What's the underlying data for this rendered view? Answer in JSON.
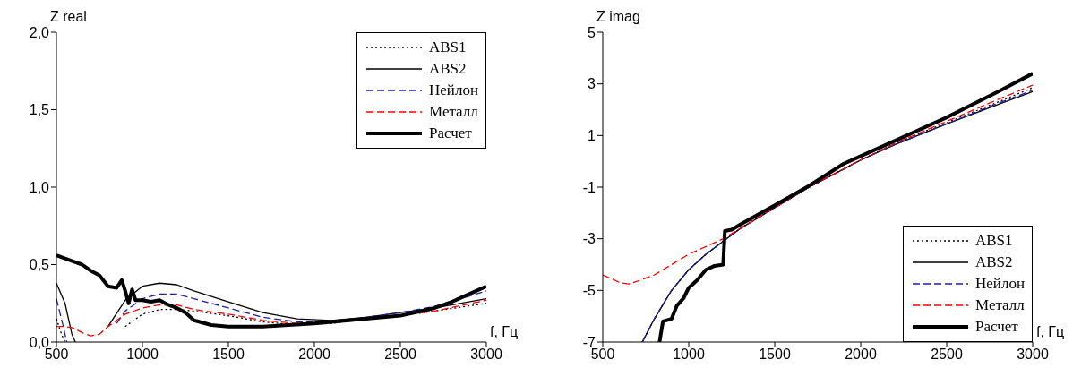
{
  "chart_data": [
    {
      "type": "line",
      "xlabel": "f, Гц",
      "ylabel": "Z real",
      "xlim": [
        500,
        3000
      ],
      "xticks": [
        500,
        1000,
        1500,
        2000,
        2500,
        3000
      ],
      "ylim": [
        0,
        2
      ],
      "yticks": [
        {
          "value": 0,
          "label": "0,0"
        },
        {
          "value": 0.5,
          "label": "0,5"
        },
        {
          "value": 1,
          "label": "1,0"
        },
        {
          "value": 1.5,
          "label": "1,5"
        },
        {
          "value": 2,
          "label": "2,0"
        }
      ],
      "grid": false,
      "legend": "top right",
      "series": [
        {
          "name": "ABS1",
          "color": "#000000",
          "line_style": "dotted",
          "x": [
            500,
            530,
            550,
            850,
            900,
            1000,
            1100,
            1200,
            1300,
            1500,
            1700,
            1900,
            2100,
            2300,
            2500,
            2700,
            3000
          ],
          "values": [
            0.15,
            0.05,
            0,
            null,
            0.1,
            0.18,
            0.21,
            0.21,
            0.2,
            0.17,
            0.13,
            0.11,
            0.12,
            0.15,
            0.17,
            0.2,
            0.25
          ]
        },
        {
          "name": "ABS2",
          "color": "#000000",
          "line_style": "solid",
          "x": [
            500,
            550,
            590,
            610,
            760,
            800,
            900,
            1000,
            1100,
            1200,
            1300,
            1500,
            1700,
            1900,
            2100,
            2300,
            2500,
            2700,
            3000
          ],
          "values": [
            0.38,
            0.25,
            0.05,
            0,
            null,
            0.1,
            0.27,
            0.36,
            0.38,
            0.37,
            0.33,
            0.26,
            0.19,
            0.15,
            0.14,
            0.16,
            0.19,
            0.22,
            0.28
          ]
        },
        {
          "name": "Нейлон",
          "color": "#1f1fa0",
          "line_style": "dashed",
          "x": [
            500,
            540,
            560,
            800,
            850,
            900,
            1000,
            1100,
            1200,
            1300,
            1500,
            1700,
            1900,
            2100,
            2300,
            2500,
            2700,
            3000
          ],
          "values": [
            0.28,
            0.1,
            0,
            null,
            0.12,
            0.2,
            0.28,
            0.31,
            0.31,
            0.28,
            0.22,
            0.16,
            0.13,
            0.13,
            0.16,
            0.19,
            0.23,
            0.33
          ]
        },
        {
          "name": "Металл",
          "color": "#ff0000",
          "line_style": "dashed",
          "x": [
            500,
            550,
            600,
            650,
            700,
            750,
            800,
            900,
            1000,
            1100,
            1200,
            1300,
            1500,
            1700,
            1900,
            2100,
            2300,
            2500,
            2700,
            3000
          ],
          "values": [
            0.1,
            0.1,
            0.09,
            0.06,
            0.04,
            0.05,
            0.1,
            0.18,
            0.22,
            0.24,
            0.24,
            0.21,
            0.18,
            0.14,
            0.12,
            0.13,
            0.15,
            0.17,
            0.2,
            0.27
          ]
        },
        {
          "name": "Расчет",
          "color": "#000000",
          "line_style": "solid",
          "x": [
            500,
            600,
            650,
            700,
            750,
            800,
            850,
            880,
            900,
            920,
            940,
            960,
            1000,
            1050,
            1100,
            1150,
            1200,
            1250,
            1300,
            1400,
            1500,
            1700,
            2000,
            2300,
            2500,
            2700,
            2800,
            3000
          ],
          "values": [
            0.56,
            0.52,
            0.5,
            0.46,
            0.43,
            0.36,
            0.35,
            0.4,
            0.33,
            0.25,
            0.34,
            0.27,
            0.27,
            0.26,
            0.27,
            0.24,
            0.22,
            0.19,
            0.14,
            0.11,
            0.1,
            0.1,
            0.12,
            0.15,
            0.17,
            0.22,
            0.26,
            0.36
          ]
        }
      ]
    },
    {
      "type": "line",
      "xlabel": "f, Гц",
      "ylabel": "Z imag",
      "xlim": [
        500,
        3000
      ],
      "xticks": [
        500,
        1000,
        1500,
        2000,
        2500,
        3000
      ],
      "ylim": [
        -7,
        5
      ],
      "yticks": [
        -7,
        -5,
        -3,
        -1,
        1,
        3,
        5
      ],
      "grid": false,
      "legend": "bottom right",
      "series": [
        {
          "name": "ABS1",
          "color": "#000000",
          "line_style": "dotted",
          "x": [
            730,
            800,
            900,
            1000,
            1100,
            1200,
            1300,
            1500,
            1700,
            1900,
            2000,
            2200,
            2500,
            2800,
            3000
          ],
          "values": [
            -7,
            -6.1,
            -5,
            -4.2,
            -3.6,
            -3.1,
            -2.6,
            -1.8,
            -1,
            -0.3,
            0.05,
            0.7,
            1.5,
            2.3,
            2.85
          ]
        },
        {
          "name": "ABS2",
          "color": "#000000",
          "line_style": "solid",
          "x": [
            730,
            800,
            900,
            1000,
            1100,
            1200,
            1300,
            1500,
            1700,
            1900,
            2000,
            2200,
            2500,
            2800,
            3000
          ],
          "values": [
            -7,
            -6.1,
            -5,
            -4.2,
            -3.6,
            -3.1,
            -2.6,
            -1.8,
            -1,
            -0.3,
            0.05,
            0.65,
            1.45,
            2.2,
            2.7
          ]
        },
        {
          "name": "Нейлон",
          "color": "#1f1fa0",
          "line_style": "dashed",
          "x": [
            730,
            800,
            900,
            1000,
            1100,
            1200,
            1300,
            1500,
            1700,
            1900,
            2000,
            2200,
            2500,
            2800,
            3000
          ],
          "values": [
            -7,
            -6.1,
            -5,
            -4.2,
            -3.6,
            -3.1,
            -2.6,
            -1.8,
            -1,
            -0.3,
            0.05,
            0.65,
            1.45,
            2.25,
            2.75
          ]
        },
        {
          "name": "Металл",
          "color": "#ff0000",
          "line_style": "dashed",
          "x": [
            500,
            600,
            650,
            700,
            800,
            900,
            1000,
            1100,
            1200,
            1300,
            1500,
            1700,
            1900,
            2000,
            2200,
            2500,
            2800,
            3000
          ],
          "values": [
            -4.4,
            -4.7,
            -4.75,
            -4.65,
            -4.4,
            -4,
            -3.6,
            -3.3,
            -3,
            -2.6,
            -1.8,
            -1,
            -0.3,
            0.05,
            0.7,
            1.55,
            2.4,
            2.95
          ]
        },
        {
          "name": "Расчет",
          "color": "#000000",
          "line_style": "solid",
          "x": [
            830,
            850,
            900,
            930,
            970,
            1000,
            1050,
            1100,
            1150,
            1200,
            1210,
            1250,
            1300,
            1500,
            1700,
            1900,
            2000,
            2200,
            2500,
            2800,
            3000
          ],
          "values": [
            -7,
            -6.2,
            -6.1,
            -5.6,
            -5.3,
            -4.9,
            -4.6,
            -4.2,
            -4.05,
            -4,
            -2.7,
            -2.65,
            -2.45,
            -1.7,
            -0.95,
            -0.1,
            0.2,
            0.8,
            1.7,
            2.7,
            3.4
          ]
        }
      ]
    }
  ]
}
